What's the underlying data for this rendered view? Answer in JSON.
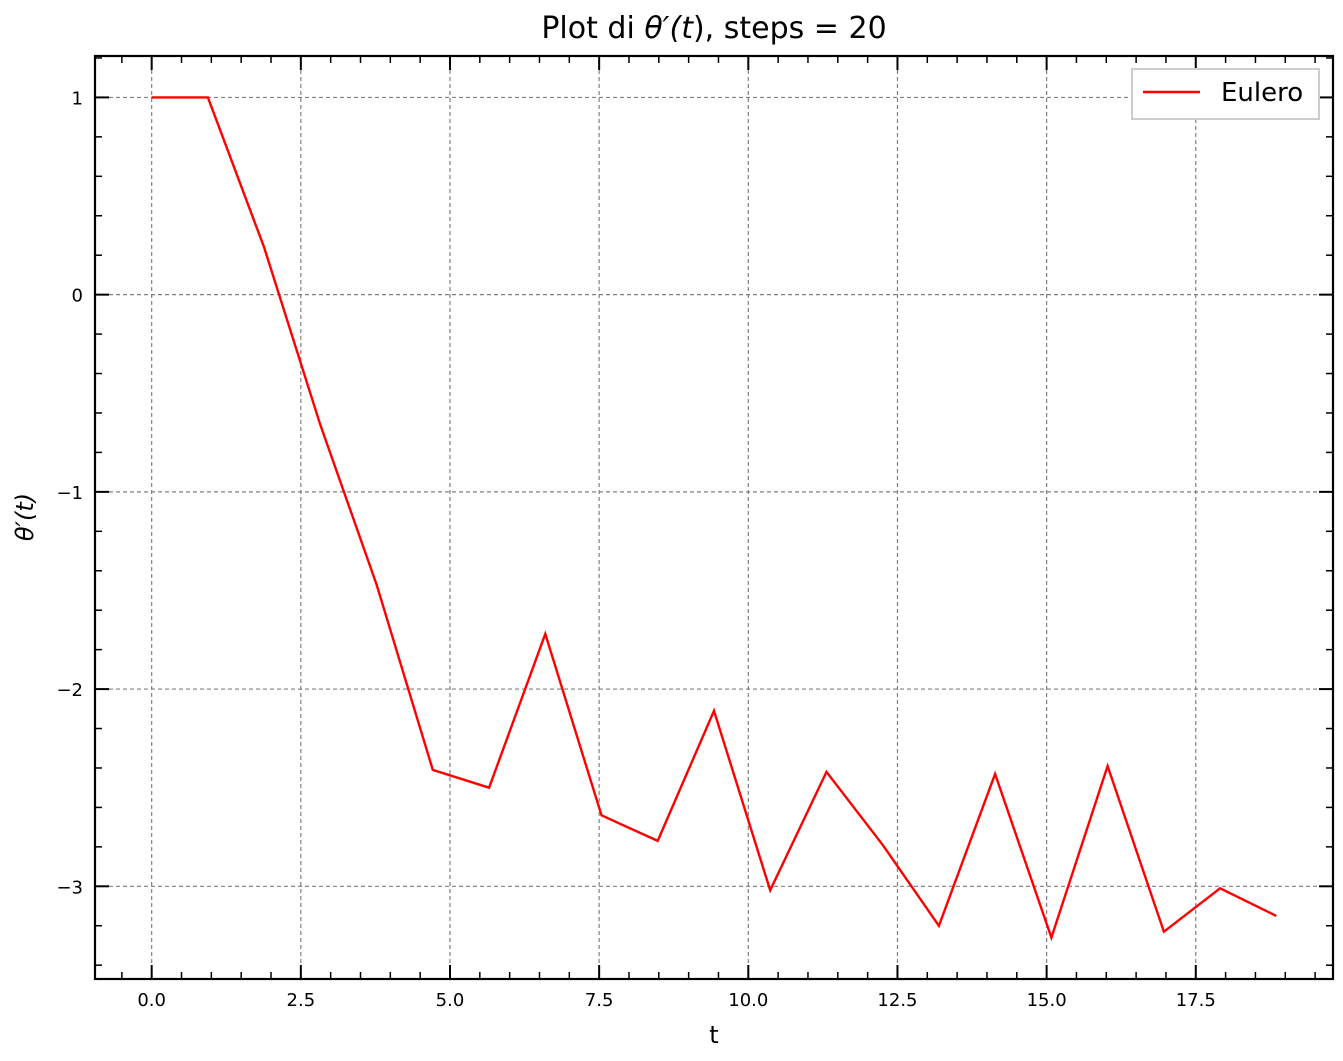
{
  "chart_data": {
    "type": "line",
    "title": "Plot di θ′(t), steps = 20",
    "title_parts": {
      "prefix": "Plot di ",
      "symbol": "θ′(",
      "var": "t",
      "suffix": "), steps = 20"
    },
    "xlabel": "t",
    "ylabel": "θ′(t)",
    "xlim": [
      -0.95,
      19.8
    ],
    "ylim": [
      -3.47,
      1.21
    ],
    "xticks": [
      0.0,
      2.5,
      5.0,
      7.5,
      10.0,
      12.5,
      15.0,
      17.5
    ],
    "xtick_labels": [
      "0.0",
      "2.5",
      "5.0",
      "7.5",
      "10.0",
      "12.5",
      "15.0",
      "17.5"
    ],
    "yticks": [
      1,
      0,
      -1,
      -2,
      -3
    ],
    "ytick_labels": [
      "1",
      "0",
      "−1",
      "−2",
      "−3"
    ],
    "grid": true,
    "legend_position": "top-right",
    "series": [
      {
        "name": "Eulero",
        "color": "#ff0000",
        "x": [
          0.0,
          0.942,
          1.885,
          2.827,
          3.77,
          4.712,
          5.655,
          6.597,
          7.54,
          8.482,
          9.425,
          10.367,
          11.31,
          12.252,
          13.195,
          14.137,
          15.08,
          16.022,
          16.965,
          17.907,
          18.85
        ],
        "y": [
          1.0,
          1.0,
          0.24,
          -0.66,
          -1.47,
          -2.41,
          -2.5,
          -1.72,
          -2.64,
          -2.77,
          -2.11,
          -3.02,
          -2.42,
          -2.79,
          -3.2,
          -2.43,
          -3.26,
          -2.39,
          -3.23,
          -3.01,
          -3.15
        ]
      }
    ]
  }
}
